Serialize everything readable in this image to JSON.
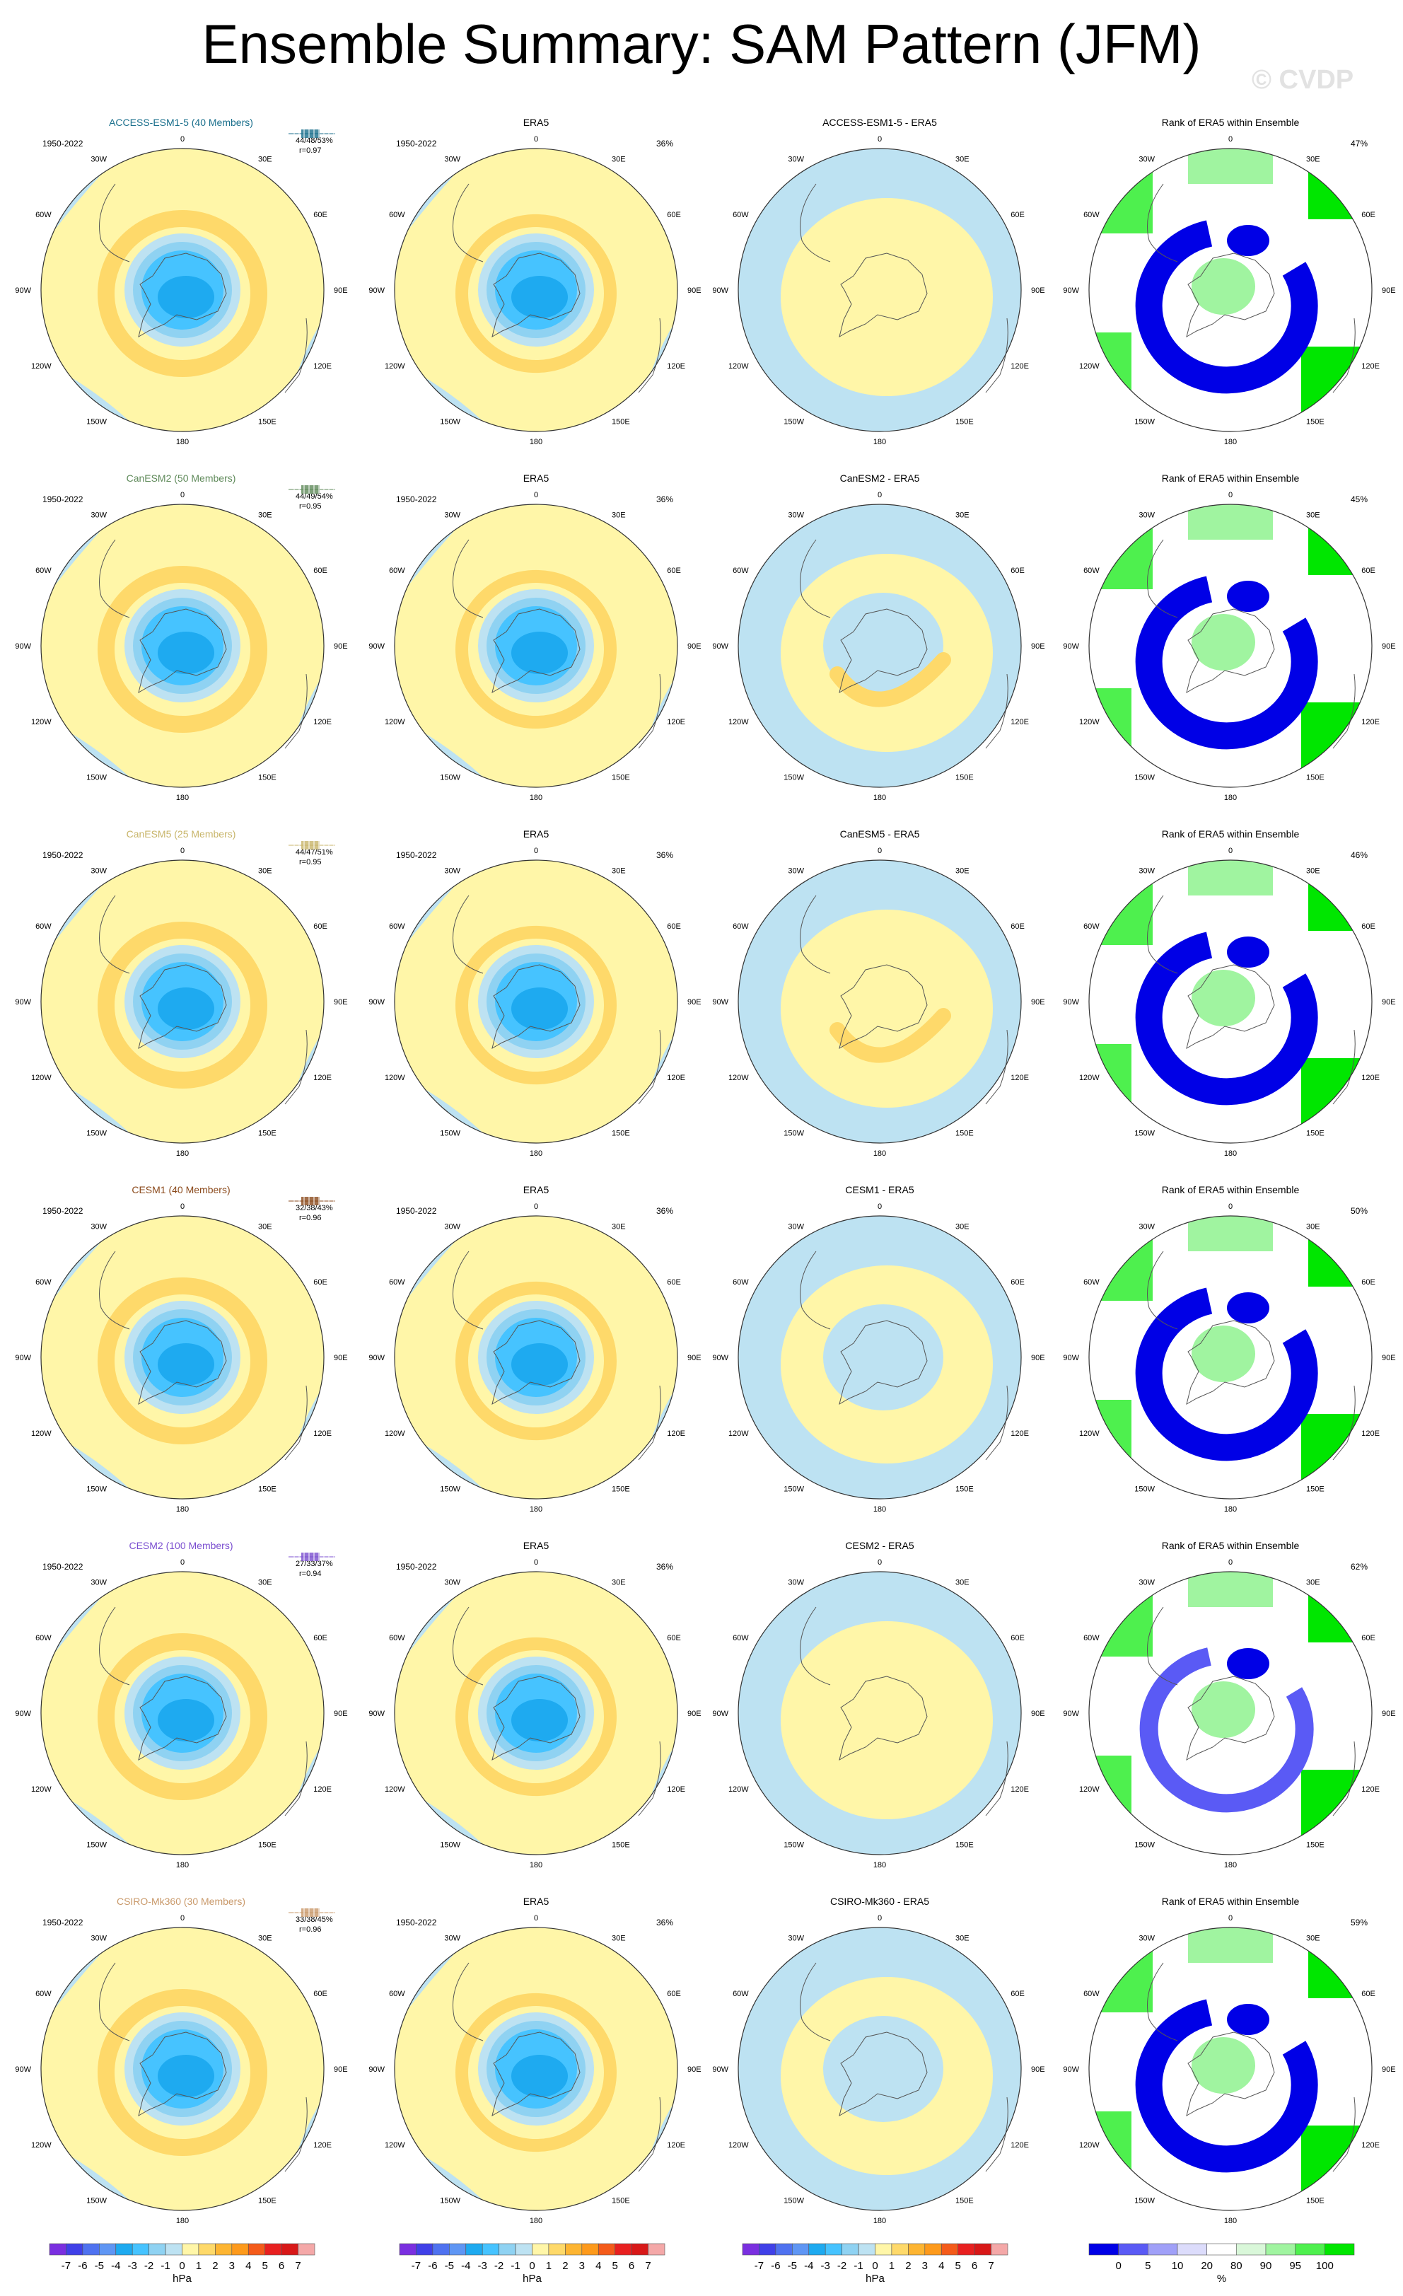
{
  "title": "Ensemble Summary: SAM Pattern (JFM)",
  "watermark": "© CVDP",
  "period": "1950-2022",
  "lon_labels": {
    "top": "0",
    "nne": "30E",
    "ene": "60E",
    "e": "90E",
    "ese": "120E",
    "sse": "150E",
    "bottom": "180",
    "ssw": "150W",
    "wsw": "120W",
    "w": "90W",
    "wnw": "60W",
    "nnw": "30W"
  },
  "rows": [
    {
      "model": "ACCESS-ESM1-5 (40 Members)",
      "diff": "ACCESS-ESM1-5 - ERA5",
      "stats": "44/48/53%",
      "r": "r=0.97",
      "era5_pct": "36%",
      "rank_pct": "47%",
      "color": "#1a6f8c"
    },
    {
      "model": "CanESM2 (50 Members)",
      "diff": "CanESM2 - ERA5",
      "stats": "44/49/54%",
      "r": "r=0.95",
      "era5_pct": "36%",
      "rank_pct": "45%",
      "color": "#5f8a5a"
    },
    {
      "model": "CanESM5 (25 Members)",
      "diff": "CanESM5 - ERA5",
      "stats": "44/47/51%",
      "r": "r=0.95",
      "era5_pct": "36%",
      "rank_pct": "46%",
      "color": "#c8b56a"
    },
    {
      "model": "CESM1 (40 Members)",
      "diff": "CESM1 - ERA5",
      "stats": "32/38/43%",
      "r": "r=0.96",
      "era5_pct": "36%",
      "rank_pct": "50%",
      "color": "#8b4a1c"
    },
    {
      "model": "CESM2 (100 Members)",
      "diff": "CESM2 - ERA5",
      "stats": "27/33/37%",
      "r": "r=0.94",
      "era5_pct": "36%",
      "rank_pct": "62%",
      "color": "#7b4fd0"
    },
    {
      "model": "CSIRO-Mk360 (30 Members)",
      "diff": "CSIRO-Mk360 - ERA5",
      "stats": "33/38/45%",
      "r": "r=0.96",
      "era5_pct": "36%",
      "rank_pct": "59%",
      "color": "#c9996a"
    }
  ],
  "era5_title": "ERA5",
  "rank_title": "Rank of ERA5 within Ensemble",
  "colorbar_hpa": {
    "labels": [
      "-7",
      "-6",
      "-5",
      "-4",
      "-3",
      "-2",
      "-1",
      "0",
      "1",
      "2",
      "3",
      "4",
      "5",
      "6",
      "7"
    ],
    "unit": "hPa",
    "colors": [
      "#7a2fe0",
      "#4040e8",
      "#4f72f0",
      "#5f96f4",
      "#1eaaf0",
      "#46c3ff",
      "#8fd2f2",
      "#bde2f2",
      "#fff6a8",
      "#fed96a",
      "#fdb532",
      "#fd9a1c",
      "#f45b1a",
      "#e82020",
      "#d81818",
      "#f4a8a8"
    ]
  },
  "colorbar_rank": {
    "labels": [
      "0",
      "5",
      "10",
      "20",
      "80",
      "90",
      "95",
      "100"
    ],
    "unit": "%",
    "colors": [
      "#0000e6",
      "#5a5af5",
      "#a0a0f8",
      "#dcdcfb",
      "#ffffff",
      "#d9f7d9",
      "#a0f4a0",
      "#4ef04e",
      "#00e600"
    ]
  }
}
